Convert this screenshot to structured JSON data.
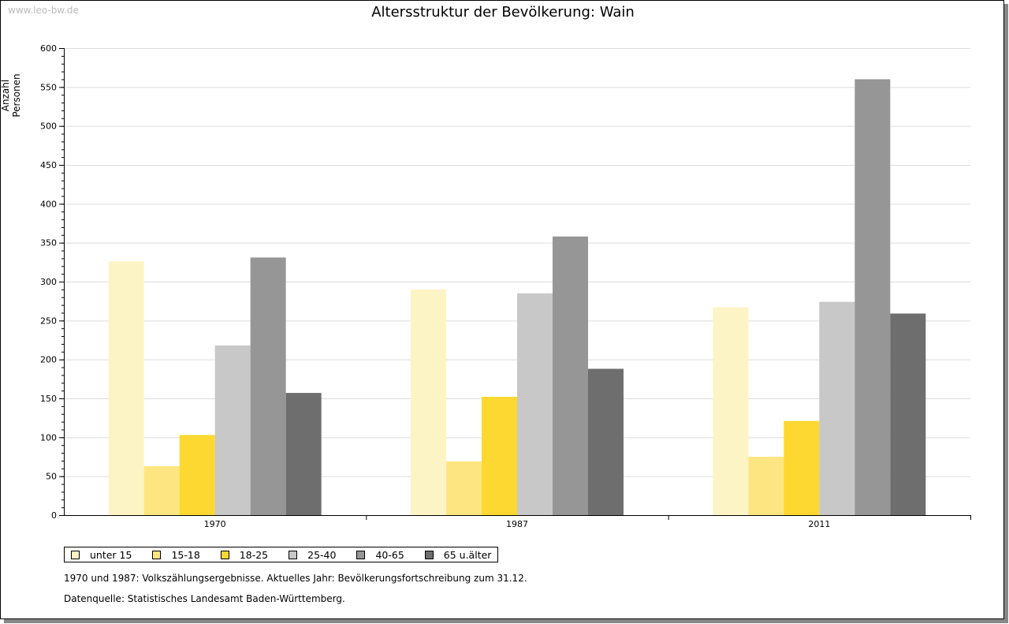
{
  "source_label": "www.leo-bw.de",
  "notes": [
    "1970 und 1987: Volkszählungsergebnisse. Aktuelles Jahr: Bevölkerungsfortschreibung zum 31.12.",
    "Datenquelle: Statistisches Landesamt Baden-Württemberg."
  ],
  "chart_data": {
    "type": "bar",
    "title": "Altersstruktur der Bevölkerung: Wain",
    "xlabel": "",
    "ylabel": "Anzahl Personen",
    "ylim": [
      0,
      600
    ],
    "yticks": [
      0,
      50,
      100,
      150,
      200,
      250,
      300,
      350,
      400,
      450,
      500,
      550,
      600
    ],
    "grid": true,
    "legend_position": "bottom-left",
    "categories": [
      "1970",
      "1987",
      "2011"
    ],
    "series": [
      {
        "name": "unter 15",
        "color": "#FDF4C5",
        "values": [
          326,
          290,
          267
        ]
      },
      {
        "name": "15-18",
        "color": "#FDE681",
        "values": [
          63,
          69,
          75
        ]
      },
      {
        "name": "18-25",
        "color": "#FDD830",
        "values": [
          103,
          152,
          121
        ]
      },
      {
        "name": "25-40",
        "color": "#C8C8C8",
        "values": [
          218,
          285,
          274
        ]
      },
      {
        "name": "40-65",
        "color": "#969696",
        "values": [
          331,
          358,
          560
        ]
      },
      {
        "name": "65 u.älter",
        "color": "#6E6E6E",
        "values": [
          157,
          188,
          259
        ]
      }
    ]
  }
}
